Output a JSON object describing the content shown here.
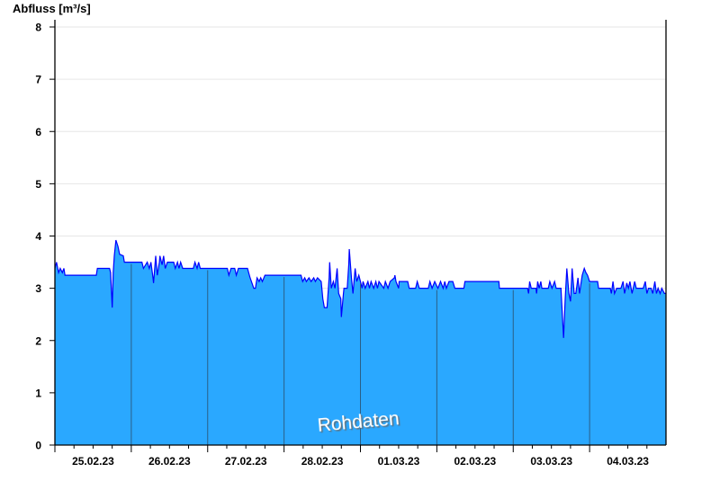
{
  "chart_data": {
    "type": "area",
    "ylabel": "Abfluss [m³/s]",
    "ylim": [
      0,
      8
    ],
    "yticks": [
      "0",
      "1",
      "2",
      "3",
      "4",
      "5",
      "6",
      "7",
      "8"
    ],
    "xlim": [
      "25.02.23 00:00",
      "05.03.23 00:00"
    ],
    "xtick_labels": [
      "25.02.23",
      "26.02.23",
      "27.02.23",
      "28.02.23",
      "01.03.23",
      "02.03.23",
      "03.03.23",
      "04.03.23"
    ],
    "grid": true,
    "watermark": "Rohdaten",
    "colors": {
      "fill": "#2aa8ff",
      "line": "#0000ff",
      "day_separator": "#2a5f86",
      "grid": "#e6e6e6"
    },
    "series": [
      {
        "date": "25.02.23",
        "points": [
          [
            "00:00",
            3.38
          ],
          [
            "00:30",
            3.5
          ],
          [
            "01:10",
            3.3
          ],
          [
            "01:40",
            3.38
          ],
          [
            "02:20",
            3.3
          ],
          [
            "02:50",
            3.38
          ],
          [
            "03:10",
            3.25
          ],
          [
            "13:00",
            3.25
          ],
          [
            "13:20",
            3.38
          ],
          [
            "17:10",
            3.38
          ],
          [
            "17:30",
            3.3
          ],
          [
            "18:00",
            2.63
          ],
          [
            "18:20",
            3.3
          ],
          [
            "18:40",
            3.62
          ],
          [
            "19:10",
            3.92
          ],
          [
            "19:50",
            3.8
          ],
          [
            "20:20",
            3.65
          ],
          [
            "21:30",
            3.62
          ],
          [
            "21:50",
            3.5
          ]
        ]
      },
      {
        "date": "26.02.23",
        "points": [
          [
            "03:20",
            3.5
          ],
          [
            "03:50",
            3.38
          ],
          [
            "05:00",
            3.5
          ],
          [
            "05:40",
            3.38
          ],
          [
            "06:10",
            3.5
          ],
          [
            "06:50",
            3.2
          ],
          [
            "07:00",
            3.1
          ],
          [
            "07:40",
            3.62
          ],
          [
            "08:10",
            3.25
          ],
          [
            "08:50",
            3.5
          ],
          [
            "09:00",
            3.62
          ],
          [
            "09:40",
            3.45
          ],
          [
            "10:10",
            3.62
          ],
          [
            "10:40",
            3.38
          ],
          [
            "11:20",
            3.5
          ],
          [
            "13:20",
            3.5
          ],
          [
            "13:50",
            3.38
          ],
          [
            "14:30",
            3.5
          ],
          [
            "15:00",
            3.38
          ],
          [
            "15:30",
            3.5
          ],
          [
            "16:10",
            3.38
          ],
          [
            "19:30",
            3.38
          ],
          [
            "20:00",
            3.5
          ],
          [
            "20:40",
            3.38
          ],
          [
            "21:10",
            3.5
          ],
          [
            "21:40",
            3.38
          ]
        ]
      },
      {
        "date": "27.02.23",
        "points": [
          [
            "06:10",
            3.38
          ],
          [
            "06:40",
            3.25
          ],
          [
            "07:20",
            3.38
          ],
          [
            "08:30",
            3.38
          ],
          [
            "09:00",
            3.25
          ],
          [
            "09:40",
            3.38
          ],
          [
            "12:30",
            3.38
          ],
          [
            "13:20",
            3.2
          ],
          [
            "14:30",
            3.0
          ],
          [
            "15:00",
            3.0
          ],
          [
            "15:30",
            3.2
          ],
          [
            "16:10",
            3.13
          ],
          [
            "16:40",
            3.2
          ],
          [
            "17:10",
            3.13
          ],
          [
            "18:00",
            3.25
          ]
        ]
      },
      {
        "date": "28.02.23",
        "points": [
          [
            "05:20",
            3.25
          ],
          [
            "05:50",
            3.13
          ],
          [
            "06:30",
            3.2
          ],
          [
            "07:00",
            3.13
          ],
          [
            "07:50",
            3.2
          ],
          [
            "08:30",
            3.13
          ],
          [
            "09:20",
            3.2
          ],
          [
            "09:50",
            3.13
          ],
          [
            "10:30",
            3.2
          ],
          [
            "11:40",
            3.13
          ],
          [
            "12:10",
            2.8
          ],
          [
            "12:40",
            2.63
          ],
          [
            "13:30",
            2.63
          ],
          [
            "14:10",
            3.2
          ],
          [
            "14:20",
            3.5
          ],
          [
            "14:50",
            3.0
          ],
          [
            "15:30",
            3.13
          ],
          [
            "16:00",
            3.0
          ],
          [
            "16:40",
            3.38
          ],
          [
            "17:10",
            2.9
          ],
          [
            "17:50",
            2.8
          ],
          [
            "18:00",
            2.45
          ],
          [
            "18:40",
            2.9
          ],
          [
            "18:50",
            3.0
          ],
          [
            "19:50",
            3.0
          ],
          [
            "20:20",
            3.45
          ],
          [
            "20:30",
            3.75
          ],
          [
            "21:10",
            3.2
          ],
          [
            "21:40",
            2.9
          ],
          [
            "22:20",
            3.38
          ],
          [
            "22:50",
            3.13
          ],
          [
            "23:30",
            3.25
          ]
        ]
      },
      {
        "date": "01.03.23",
        "points": [
          [
            "00:00",
            3.13
          ],
          [
            "00:30",
            3.0
          ],
          [
            "00:50",
            3.13
          ],
          [
            "01:30",
            3.0
          ],
          [
            "02:20",
            3.13
          ],
          [
            "02:50",
            3.0
          ],
          [
            "03:20",
            3.13
          ],
          [
            "04:10",
            3.0
          ],
          [
            "04:50",
            3.13
          ],
          [
            "05:20",
            3.0
          ],
          [
            "05:50",
            3.13
          ],
          [
            "07:20",
            3.0
          ],
          [
            "07:50",
            3.13
          ],
          [
            "08:40",
            3.0
          ],
          [
            "09:20",
            3.13
          ],
          [
            "10:40",
            3.2
          ],
          [
            "10:50",
            3.25
          ],
          [
            "11:10",
            3.13
          ],
          [
            "12:00",
            3.0
          ],
          [
            "12:10",
            3.13
          ],
          [
            "14:50",
            3.13
          ],
          [
            "15:20",
            3.0
          ],
          [
            "17:20",
            3.0
          ],
          [
            "17:50",
            3.13
          ],
          [
            "18:30",
            3.0
          ],
          [
            "21:20",
            3.0
          ],
          [
            "21:50",
            3.13
          ],
          [
            "22:30",
            3.0
          ],
          [
            "23:20",
            3.13
          ]
        ]
      },
      {
        "date": "02.03.23",
        "points": [
          [
            "00:20",
            3.0
          ],
          [
            "01:10",
            3.13
          ],
          [
            "02:00",
            3.0
          ],
          [
            "02:30",
            3.13
          ],
          [
            "03:00",
            3.0
          ],
          [
            "03:50",
            3.13
          ],
          [
            "05:00",
            3.13
          ],
          [
            "05:40",
            3.0
          ],
          [
            "08:30",
            3.0
          ],
          [
            "08:50",
            3.13
          ],
          [
            "19:30",
            3.13
          ],
          [
            "19:40",
            3.0
          ]
        ]
      },
      {
        "date": "03.03.23",
        "points": [
          [
            "04:30",
            3.0
          ],
          [
            "04:50",
            2.9
          ],
          [
            "05:10",
            3.13
          ],
          [
            "05:40",
            3.0
          ],
          [
            "07:10",
            3.0
          ],
          [
            "07:20",
            2.9
          ],
          [
            "07:40",
            3.13
          ],
          [
            "08:10",
            3.0
          ],
          [
            "08:40",
            3.13
          ],
          [
            "09:00",
            3.0
          ],
          [
            "11:00",
            3.0
          ],
          [
            "11:30",
            3.13
          ],
          [
            "12:10",
            3.0
          ],
          [
            "13:00",
            3.13
          ],
          [
            "13:30",
            3.0
          ],
          [
            "15:00",
            3.0
          ],
          [
            "15:10",
            2.8
          ],
          [
            "15:50",
            2.05
          ],
          [
            "16:20",
            2.8
          ],
          [
            "16:50",
            3.38
          ],
          [
            "17:30",
            2.9
          ],
          [
            "18:00",
            2.75
          ],
          [
            "18:30",
            3.38
          ],
          [
            "19:10",
            2.9
          ],
          [
            "19:40",
            2.9
          ],
          [
            "20:20",
            3.2
          ],
          [
            "20:50",
            2.9
          ],
          [
            "21:40",
            3.25
          ],
          [
            "22:20",
            3.38
          ],
          [
            "22:50",
            3.3
          ],
          [
            "23:20",
            3.25
          ]
        ]
      },
      {
        "date": "04.03.23",
        "points": [
          [
            "00:00",
            3.13
          ],
          [
            "02:30",
            3.13
          ],
          [
            "02:50",
            3.0
          ],
          [
            "06:30",
            3.0
          ],
          [
            "06:50",
            2.9
          ],
          [
            "07:20",
            3.13
          ],
          [
            "07:50",
            2.9
          ],
          [
            "08:30",
            3.0
          ],
          [
            "09:50",
            3.0
          ],
          [
            "10:30",
            3.13
          ],
          [
            "11:00",
            2.9
          ],
          [
            "11:40",
            3.1
          ],
          [
            "12:10",
            3.0
          ],
          [
            "12:40",
            3.13
          ],
          [
            "13:20",
            2.9
          ],
          [
            "14:10",
            3.13
          ],
          [
            "14:40",
            3.0
          ],
          [
            "16:50",
            3.0
          ],
          [
            "17:30",
            3.13
          ],
          [
            "18:00",
            2.9
          ],
          [
            "18:30",
            3.0
          ],
          [
            "19:20",
            3.0
          ],
          [
            "19:50",
            2.9
          ],
          [
            "20:30",
            3.13
          ],
          [
            "21:00",
            2.9
          ],
          [
            "21:30",
            3.0
          ],
          [
            "22:10",
            2.9
          ],
          [
            "22:40",
            3.0
          ],
          [
            "23:30",
            2.9
          ]
        ]
      }
    ]
  }
}
